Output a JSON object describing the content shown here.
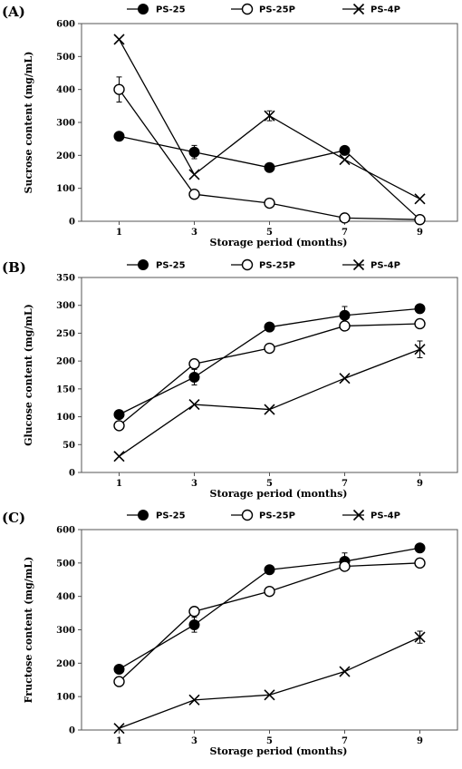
{
  "chart_data": [
    {
      "type": "line",
      "panel_label": "(A)",
      "ylabel": "Sucrose content  (mg/mL)",
      "xlabel": "Storage period (months)",
      "x": [
        1,
        3,
        5,
        7,
        9
      ],
      "ylim": [
        0,
        600
      ],
      "yticks": [
        0,
        100,
        200,
        300,
        400,
        500,
        600
      ],
      "series": [
        {
          "name": "PS-25",
          "marker": "filled-circle",
          "values": [
            258,
            210,
            163,
            215,
            5
          ],
          "errors": [
            0,
            20,
            0,
            0,
            0
          ]
        },
        {
          "name": "PS-25P",
          "marker": "open-circle",
          "values": [
            400,
            82,
            55,
            10,
            5
          ],
          "errors": [
            38,
            0,
            0,
            0,
            0
          ]
        },
        {
          "name": "PS-4P",
          "marker": "cross",
          "values": [
            552,
            142,
            320,
            187,
            68
          ],
          "errors": [
            0,
            0,
            15,
            0,
            0
          ]
        }
      ]
    },
    {
      "type": "line",
      "panel_label": "(B)",
      "ylabel": "Glucose content  (mg/mL)",
      "xlabel": "Storage period (months)",
      "x": [
        1,
        3,
        5,
        7,
        9
      ],
      "ylim": [
        0,
        350
      ],
      "yticks": [
        0,
        50,
        100,
        150,
        200,
        250,
        300,
        350
      ],
      "series": [
        {
          "name": "PS-25",
          "marker": "filled-circle",
          "values": [
            104,
            171,
            261,
            282,
            294
          ],
          "errors": [
            0,
            14,
            0,
            16,
            0
          ]
        },
        {
          "name": "PS-25P",
          "marker": "open-circle",
          "values": [
            84,
            195,
            223,
            263,
            267
          ],
          "errors": [
            0,
            0,
            0,
            0,
            0
          ]
        },
        {
          "name": "PS-4P",
          "marker": "cross",
          "values": [
            29,
            122,
            113,
            169,
            221
          ],
          "errors": [
            0,
            0,
            0,
            0,
            15
          ]
        }
      ]
    },
    {
      "type": "line",
      "panel_label": "(C)",
      "ylabel": "Fructose content  (mg/mL)",
      "xlabel": "Storage period (months)",
      "x": [
        1,
        3,
        5,
        7,
        9
      ],
      "ylim": [
        0,
        600
      ],
      "yticks": [
        0,
        100,
        200,
        300,
        400,
        500,
        600
      ],
      "series": [
        {
          "name": "PS-25",
          "marker": "filled-circle",
          "values": [
            182,
            315,
            480,
            505,
            545
          ],
          "errors": [
            0,
            22,
            0,
            25,
            0
          ]
        },
        {
          "name": "PS-25P",
          "marker": "open-circle",
          "values": [
            145,
            355,
            415,
            490,
            500
          ],
          "errors": [
            0,
            0,
            0,
            0,
            12
          ]
        },
        {
          "name": "PS-4P",
          "marker": "cross",
          "values": [
            5,
            90,
            105,
            175,
            278
          ],
          "errors": [
            0,
            0,
            0,
            0,
            18
          ]
        }
      ]
    }
  ]
}
